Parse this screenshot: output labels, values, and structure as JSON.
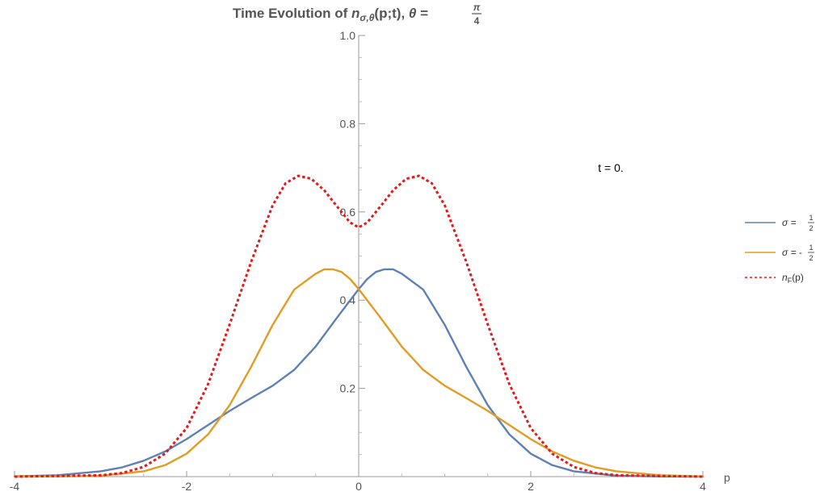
{
  "chart_data": {
    "type": "line",
    "title": {
      "prefix": "Time Evolution of ",
      "symbol": "n",
      "subscript": "σ,θ",
      "args": "(p;t), ",
      "theta": "θ",
      "equals": " = ",
      "frac_num": "π",
      "frac_den": "4"
    },
    "xlabel": "p",
    "ylabel": "",
    "xlim": [
      -4,
      4
    ],
    "ylim": [
      0,
      1.0
    ],
    "x_ticks": [
      {
        "value": -4,
        "label": "-4"
      },
      {
        "value": -2,
        "label": "-2"
      },
      {
        "value": 0,
        "label": "0"
      },
      {
        "value": 2,
        "label": "2"
      },
      {
        "value": 4,
        "label": "4"
      }
    ],
    "y_ticks": [
      {
        "value": 0.2,
        "label": "0.2"
      },
      {
        "value": 0.4,
        "label": "0.4"
      },
      {
        "value": 0.6,
        "label": "0.6"
      },
      {
        "value": 0.8,
        "label": "0.8"
      },
      {
        "value": 1.0,
        "label": "1.0"
      }
    ],
    "annotation": "t = 0.",
    "grid": false,
    "legend_position": "right",
    "series": [
      {
        "name": "σ = 1/2",
        "legend": {
          "prefix": "σ = ",
          "num": "1",
          "den": "2",
          "sign": ""
        },
        "color": "#5e81b5",
        "dash": false,
        "points": [
          [
            -4.0,
            0.0006
          ],
          [
            -3.5,
            0.003
          ],
          [
            -3.0,
            0.012
          ],
          [
            -2.75,
            0.021
          ],
          [
            -2.5,
            0.036
          ],
          [
            -2.25,
            0.057
          ],
          [
            -2.0,
            0.085
          ],
          [
            -1.75,
            0.117
          ],
          [
            -1.5,
            0.149
          ],
          [
            -1.25,
            0.178
          ],
          [
            -1.0,
            0.206
          ],
          [
            -0.75,
            0.242
          ],
          [
            -0.5,
            0.295
          ],
          [
            -0.25,
            0.361
          ],
          [
            0.0,
            0.425
          ],
          [
            0.1,
            0.448
          ],
          [
            0.2,
            0.464
          ],
          [
            0.3,
            0.47
          ],
          [
            0.4,
            0.47
          ],
          [
            0.5,
            0.46
          ],
          [
            0.75,
            0.424
          ],
          [
            1.0,
            0.344
          ],
          [
            1.25,
            0.249
          ],
          [
            1.5,
            0.162
          ],
          [
            1.75,
            0.096
          ],
          [
            2.0,
            0.052
          ],
          [
            2.25,
            0.026
          ],
          [
            2.5,
            0.012
          ],
          [
            3.0,
            0.002
          ],
          [
            3.5,
            0.0003
          ],
          [
            4.0,
            0.0
          ]
        ]
      },
      {
        "name": "σ = -1/2",
        "legend": {
          "prefix": "σ = ",
          "num": "1",
          "den": "2",
          "sign": "-"
        },
        "color": "#e19c24",
        "dash": false,
        "points": [
          [
            -4.0,
            0.0
          ],
          [
            -3.5,
            0.0003
          ],
          [
            -3.0,
            0.002
          ],
          [
            -2.5,
            0.012
          ],
          [
            -2.25,
            0.026
          ],
          [
            -2.0,
            0.052
          ],
          [
            -1.75,
            0.096
          ],
          [
            -1.5,
            0.162
          ],
          [
            -1.25,
            0.249
          ],
          [
            -1.0,
            0.344
          ],
          [
            -0.75,
            0.424
          ],
          [
            -0.5,
            0.46
          ],
          [
            -0.4,
            0.47
          ],
          [
            -0.3,
            0.47
          ],
          [
            -0.2,
            0.464
          ],
          [
            -0.1,
            0.448
          ],
          [
            0.0,
            0.425
          ],
          [
            0.25,
            0.361
          ],
          [
            0.5,
            0.295
          ],
          [
            0.75,
            0.242
          ],
          [
            1.0,
            0.206
          ],
          [
            1.25,
            0.178
          ],
          [
            1.5,
            0.149
          ],
          [
            1.75,
            0.117
          ],
          [
            2.0,
            0.085
          ],
          [
            2.25,
            0.057
          ],
          [
            2.5,
            0.036
          ],
          [
            2.75,
            0.021
          ],
          [
            3.0,
            0.012
          ],
          [
            3.5,
            0.003
          ],
          [
            4.0,
            0.0006
          ]
        ]
      },
      {
        "name": "nF(p)",
        "legend": {
          "symbol": "n",
          "subscript": "F",
          "suffix": "(p)"
        },
        "color": "#e31a1c",
        "dash": true,
        "points": [
          [
            -4.0,
            0.0
          ],
          [
            -3.0,
            0.003
          ],
          [
            -2.75,
            0.008
          ],
          [
            -2.5,
            0.022
          ],
          [
            -2.25,
            0.052
          ],
          [
            -2.0,
            0.11
          ],
          [
            -1.75,
            0.21
          ],
          [
            -1.5,
            0.345
          ],
          [
            -1.25,
            0.487
          ],
          [
            -1.0,
            0.615
          ],
          [
            -0.85,
            0.665
          ],
          [
            -0.7,
            0.682
          ],
          [
            -0.55,
            0.675
          ],
          [
            -0.4,
            0.649
          ],
          [
            -0.25,
            0.612
          ],
          [
            -0.1,
            0.576
          ],
          [
            0.0,
            0.565
          ],
          [
            0.1,
            0.576
          ],
          [
            0.25,
            0.612
          ],
          [
            0.4,
            0.649
          ],
          [
            0.55,
            0.675
          ],
          [
            0.7,
            0.682
          ],
          [
            0.85,
            0.665
          ],
          [
            1.0,
            0.615
          ],
          [
            1.25,
            0.487
          ],
          [
            1.5,
            0.345
          ],
          [
            1.75,
            0.21
          ],
          [
            2.0,
            0.11
          ],
          [
            2.25,
            0.052
          ],
          [
            2.5,
            0.022
          ],
          [
            2.75,
            0.008
          ],
          [
            3.0,
            0.003
          ],
          [
            4.0,
            0.0
          ]
        ]
      }
    ]
  }
}
